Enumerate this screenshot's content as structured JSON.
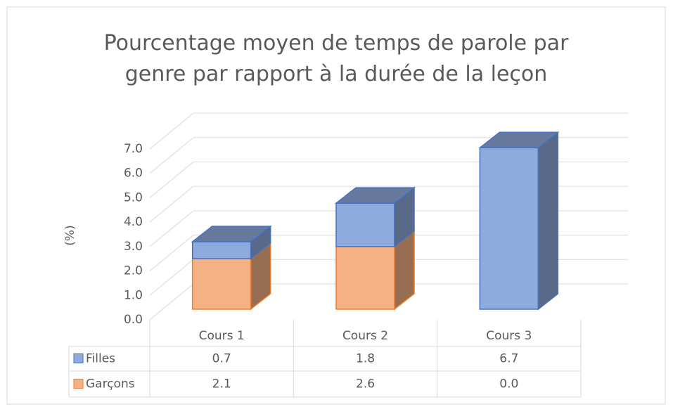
{
  "chart_data": {
    "type": "bar3d_stacked",
    "title": "Pourcentage moyen de temps de parole par genre par rapport à la durée de la leçon",
    "y_label": "(%)",
    "categories": [
      "Cours 1",
      "Cours 2",
      "Cours 3"
    ],
    "series": [
      {
        "name": "Garçons",
        "color": "#f4b183",
        "values": [
          2.1,
          2.6,
          0.0
        ],
        "value_labels": [
          "2.1",
          "2.6",
          "0.0"
        ]
      },
      {
        "name": "Filles",
        "color": "#8faadc",
        "values": [
          0.7,
          1.8,
          6.7
        ],
        "value_labels": [
          "0.7",
          "1.8",
          "6.7"
        ]
      }
    ],
    "table_order": [
      1,
      0
    ],
    "ylim": [
      0,
      7
    ],
    "yticks": [
      {
        "value": 0,
        "label": "0.0"
      },
      {
        "value": 1,
        "label": "1.0"
      },
      {
        "value": 2,
        "label": "2.0"
      },
      {
        "value": 3,
        "label": "3.0"
      },
      {
        "value": 4,
        "label": "4.0"
      },
      {
        "value": 5,
        "label": "5.0"
      },
      {
        "value": 6,
        "label": "6.0"
      },
      {
        "value": 7,
        "label": "7.0"
      }
    ],
    "grid": true
  }
}
